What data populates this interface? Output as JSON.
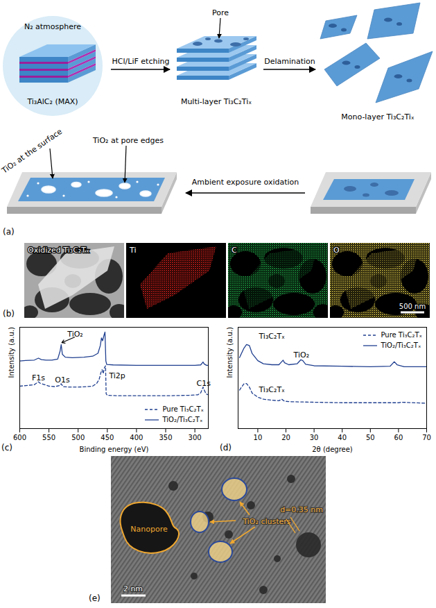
{
  "a": {
    "letter": "(a)",
    "atmosphere": "N₂ atmosphere",
    "max_phase": "Ti₃AlC₂ (MAX)",
    "etching": "HCl/LiF etching",
    "pore": "Pore",
    "multilayer": "Multi-layer Ti₃C₂Tiₓ",
    "delamination": "Delamination",
    "monolayer": "Mono-layer Ti₃C₂Tiₓ",
    "oxidation": "Ambient exposure oxidation",
    "tio2_surface": "TiO₂ at the surface",
    "tio2_pore_edges": "TiO₂ at pore edges"
  },
  "b": {
    "letter": "(b)",
    "maps": [
      "Oxidized Ti₃C₂Tₓ",
      "Ti",
      "C",
      "O"
    ],
    "scale_bar": "500 nm"
  },
  "chart_data": [
    {
      "type": "line",
      "title": "(c)",
      "x_label": "Binding energy (eV)",
      "y_label": "Intensity (a.u.)",
      "xlim": [
        600,
        277
      ],
      "xticks": [
        600,
        550,
        500,
        450,
        400,
        350,
        300
      ],
      "ylim": [
        0,
        10.5
      ],
      "yticks": [],
      "tick_labels": "x",
      "legend": "lower right",
      "series": [
        {
          "name": "Pure Ti₃C₂Tₓ",
          "color": "#1f3f8f",
          "line_style": "dashed",
          "x": [
            600,
            590,
            575,
            568,
            565,
            560,
            550,
            540,
            532,
            529,
            526,
            515,
            500,
            485,
            475,
            468,
            464,
            461,
            459,
            457,
            455,
            453,
            452,
            450,
            430,
            400,
            350,
            310,
            295,
            290,
            286,
            284,
            281,
            277
          ],
          "values": [
            4.4,
            4.45,
            4.55,
            4.85,
            4.7,
            4.6,
            4.4,
            4.35,
            4.45,
            4.65,
            4.35,
            4.3,
            4.3,
            4.35,
            4.4,
            4.7,
            5.1,
            5.8,
            6.1,
            5.7,
            6.3,
            6.5,
            3.6,
            3.45,
            3.4,
            3.4,
            3.4,
            3.45,
            3.5,
            3.7,
            4.3,
            4.0,
            3.6,
            3.5
          ]
        },
        {
          "name": "TiO₂/Ti₃C₂Tₓ",
          "color": "#1f3f8f",
          "line_style": "solid",
          "x": [
            600,
            590,
            575,
            568,
            563,
            555,
            545,
            535,
            531,
            529,
            527,
            522,
            510,
            490,
            475,
            466,
            462,
            460,
            458,
            456,
            454,
            452.5,
            451,
            440,
            400,
            350,
            300,
            290,
            286,
            284,
            280,
            277
          ],
          "values": [
            7.0,
            7.05,
            7.1,
            7.3,
            7.15,
            7.1,
            7.1,
            7.2,
            8.0,
            8.7,
            7.7,
            7.4,
            7.35,
            7.4,
            7.5,
            7.8,
            8.6,
            9.4,
            9.1,
            9.6,
            10.0,
            7.0,
            6.65,
            6.6,
            6.55,
            6.55,
            6.55,
            6.6,
            6.9,
            6.7,
            6.55,
            6.55
          ]
        }
      ],
      "annotations": [
        {
          "text": "TiO₂",
          "x": 505,
          "y": 9.5,
          "arrow_to": [
            528,
            8.9
          ]
        },
        {
          "text": "F1s",
          "x": 568,
          "y": 5.0
        },
        {
          "text": "O1s",
          "x": 527,
          "y": 4.8
        },
        {
          "text": "Ti2p",
          "x": 433,
          "y": 5.2
        },
        {
          "text": "C1s",
          "x": 285,
          "y": 4.45
        }
      ]
    },
    {
      "type": "line",
      "title": "(d)",
      "x_label": "2θ (degree)",
      "y_label": "Intensity (a.u.)",
      "xlim": [
        3,
        70
      ],
      "xticks": [
        10,
        20,
        30,
        40,
        50,
        60,
        70
      ],
      "ylim": [
        0,
        10
      ],
      "yticks": [],
      "tick_labels": "x",
      "legend": "upper right",
      "series": [
        {
          "name": "Pure Ti₃C₂Tₓ",
          "color": "#1f3f8f",
          "line_style": "dashed",
          "x": [
            3.5,
            5,
            6,
            7,
            8,
            10,
            12,
            15,
            17.5,
            18.5,
            19.5,
            22,
            30,
            40,
            50,
            60,
            61,
            70
          ],
          "values": [
            3.8,
            4.4,
            4.45,
            4.1,
            3.5,
            3.1,
            2.9,
            2.8,
            2.75,
            2.9,
            2.7,
            2.65,
            2.6,
            2.55,
            2.55,
            2.55,
            2.6,
            2.5
          ]
        },
        {
          "name": "TiO₂/Ti₃C₂Tₓ",
          "color": "#1f3f8f",
          "line_style": "solid",
          "x": [
            3.5,
            5,
            6,
            7,
            8,
            10,
            12,
            15,
            17.5,
            18.5,
            19,
            19.5,
            21,
            24,
            25.3,
            26,
            27,
            30,
            40,
            50,
            57,
            58.5,
            59.5,
            62,
            70
          ],
          "values": [
            7.0,
            7.9,
            8.3,
            8.2,
            7.4,
            6.7,
            6.4,
            6.3,
            6.3,
            6.6,
            6.75,
            6.5,
            6.3,
            6.4,
            6.8,
            6.7,
            6.35,
            6.2,
            6.15,
            6.1,
            6.15,
            6.6,
            6.3,
            6.1,
            6.1
          ]
        }
      ],
      "annotations": [
        {
          "text": "Ti₃C₂Tₓ",
          "x": 15,
          "y": 8.9
        },
        {
          "text": "TiO₂",
          "x": 25.5,
          "y": 7.0
        },
        {
          "text": "Ti₃C₂Tₓ",
          "x": 15,
          "y": 3.6
        }
      ]
    }
  ],
  "e": {
    "letter": "(e)",
    "nanopore": "Nanopore",
    "clusters": "TiO₂ clusters",
    "spacing": "d=0.35 nm",
    "scale_bar": "2 nm"
  }
}
